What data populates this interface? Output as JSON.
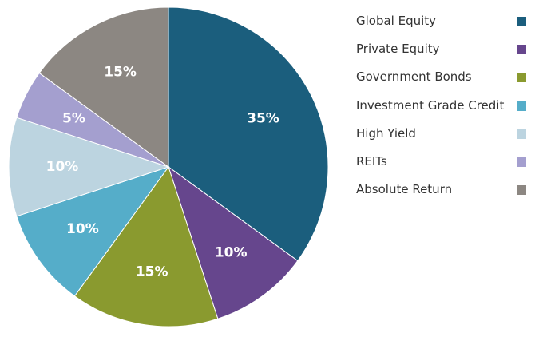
{
  "chart_data": {
    "type": "pie",
    "title": "",
    "slices": [
      {
        "name": "Global Equity",
        "value": 35,
        "label": "35%",
        "color": "#1b5e7d"
      },
      {
        "name": "Private Equity",
        "value": 10,
        "label": "10%",
        "color": "#66468d"
      },
      {
        "name": "Government Bonds",
        "value": 15,
        "label": "15%",
        "color": "#8a9a2f"
      },
      {
        "name": "Investment Grade Credit",
        "value": 10,
        "label": "10%",
        "color": "#55adc9"
      },
      {
        "name": "High Yield",
        "value": 10,
        "label": "10%",
        "color": "#bcd4e0"
      },
      {
        "name": "REITs",
        "value": 5,
        "label": "5%",
        "color": "#a49fcf"
      },
      {
        "name": "Absolute Return",
        "value": 15,
        "label": "15%",
        "color": "#8c8782"
      }
    ],
    "legend_position": "right"
  }
}
